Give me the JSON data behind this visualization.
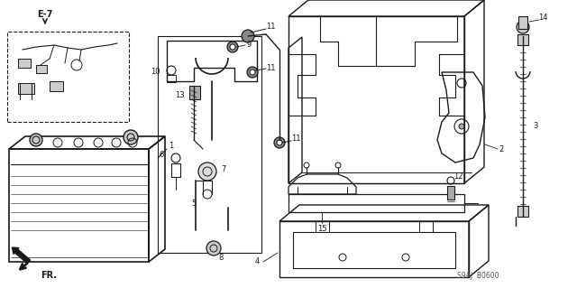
{
  "bg_color": "#ffffff",
  "line_color": "#1a1a1a",
  "fig_width": 6.4,
  "fig_height": 3.19,
  "dpi": 100,
  "watermark": "S9AJ  B0600",
  "anno_color": "#1a1a1a"
}
